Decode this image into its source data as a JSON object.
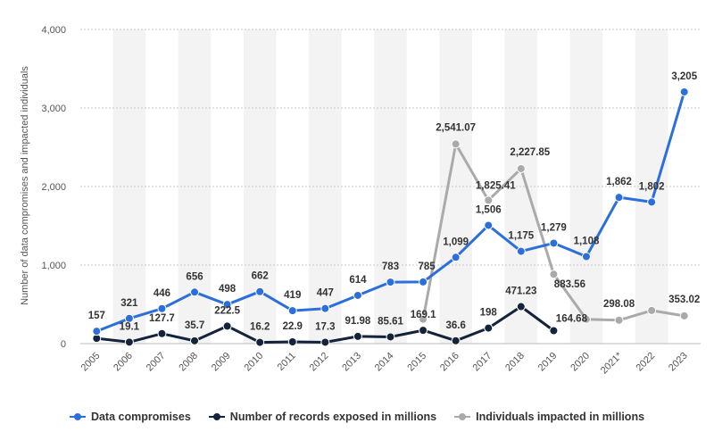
{
  "chart_data": {
    "type": "line",
    "ylabel": "Number of data compromises and impacted individuals",
    "ylim": [
      0,
      4000
    ],
    "yticks": [
      "0",
      "1,000",
      "2,000",
      "3,000",
      "4,000"
    ],
    "ytick_values": [
      0,
      1000,
      2000,
      3000,
      4000
    ],
    "grid": true,
    "legend_position": "bottom",
    "categories": [
      "2005",
      "2006",
      "2007",
      "2008",
      "2009",
      "2010",
      "2011",
      "2012",
      "2013",
      "2014",
      "2015",
      "2016",
      "2017",
      "2018",
      "2019",
      "2020",
      "2021*",
      "2022",
      "2023"
    ],
    "series": [
      {
        "name": "Data compromises",
        "color": "#2c6fdc",
        "values": [
          157,
          321,
          446,
          656,
          498,
          662,
          419,
          447,
          614,
          783,
          785,
          1099,
          1506,
          1175,
          1279,
          1108,
          1862,
          1802,
          3205
        ],
        "labels": [
          "157",
          "321",
          "446",
          "656",
          "498",
          "662",
          "419",
          "447",
          "614",
          "783",
          "785",
          "1,099",
          "1,506",
          "1,175",
          "1,279",
          "1,108",
          "1,862",
          "1,802",
          "3,205"
        ]
      },
      {
        "name": "Number of records exposed in millions",
        "color": "#13233a",
        "values": [
          66.9,
          19.1,
          127.7,
          35.7,
          222.5,
          16.2,
          22.9,
          17.3,
          91.98,
          85.61,
          169.1,
          36.6,
          198,
          471.23,
          164.68,
          null,
          null,
          null,
          null
        ],
        "labels": [
          "",
          "19.1",
          "127.7",
          "35.7",
          "222.5",
          "16.2",
          "22.9",
          "17.3",
          "91.98",
          "85.61",
          "169.1",
          "36.6",
          "198",
          "471.23",
          "164.68",
          "",
          "",
          "",
          ""
        ]
      },
      {
        "name": "Individuals impacted in millions",
        "color": "#aaaaaa",
        "values": [
          null,
          null,
          null,
          null,
          null,
          null,
          null,
          null,
          null,
          null,
          310,
          2541.07,
          1825.41,
          2227.85,
          883.56,
          310,
          298.08,
          422,
          353.02
        ],
        "labels": [
          "",
          "",
          "",
          "",
          "",
          "",
          "",
          "",
          "",
          "",
          "",
          "2,541.07",
          "1,825.41",
          "2,227.85",
          "883.56",
          "",
          "298.08",
          "",
          "353.02"
        ]
      }
    ]
  }
}
